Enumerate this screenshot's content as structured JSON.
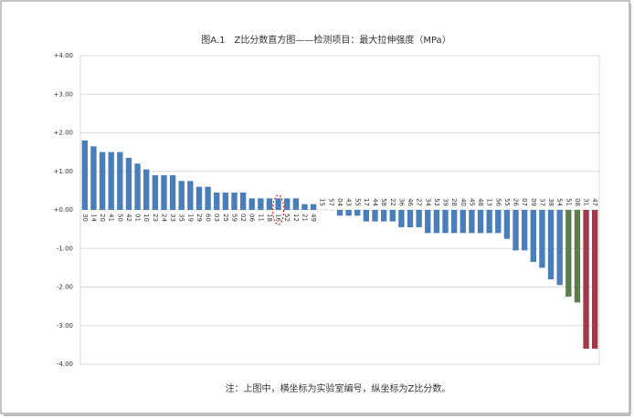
{
  "chart_data": {
    "type": "bar",
    "title": "图A.1　Z比分数直方图——检测项目：最大拉伸强度（MPa）",
    "note": "注：上图中，横坐标为实验室编号，纵坐标为Z比分数。",
    "categories": [
      "30",
      "14",
      "20",
      "41",
      "50",
      "42",
      "01",
      "10",
      "23",
      "24",
      "33",
      "35",
      "19",
      "29",
      "60",
      "03",
      "25",
      "59",
      "02",
      "06",
      "11",
      "18",
      "16",
      "52",
      "12",
      "21",
      "49",
      "15",
      "57",
      "04",
      "43",
      "55",
      "17",
      "44",
      "58",
      "22",
      "36",
      "46",
      "27",
      "34",
      "53",
      "39",
      "28",
      "40",
      "45",
      "48",
      "13",
      "56",
      "55",
      "26",
      "07",
      "09",
      "37",
      "38",
      "54",
      "51",
      "08",
      "31",
      "47"
    ],
    "values": [
      1.8,
      1.65,
      1.5,
      1.5,
      1.5,
      1.35,
      1.2,
      1.05,
      0.9,
      0.9,
      0.9,
      0.75,
      0.75,
      0.6,
      0.6,
      0.45,
      0.45,
      0.45,
      0.45,
      0.3,
      0.3,
      0.3,
      0.3,
      0.3,
      0.3,
      0.15,
      0.15,
      0,
      0,
      -0.15,
      -0.15,
      -0.15,
      -0.3,
      -0.3,
      -0.3,
      -0.3,
      -0.45,
      -0.45,
      -0.45,
      -0.6,
      -0.6,
      -0.6,
      -0.6,
      -0.6,
      -0.6,
      -0.6,
      -0.6,
      -0.6,
      -0.75,
      -1.05,
      -1.05,
      -1.35,
      -1.5,
      -1.8,
      -1.95,
      -2.25,
      -2.4,
      -3.6,
      -3.6
    ],
    "colors": [
      "#4a7ebb",
      "#4a7ebb",
      "#4a7ebb",
      "#4a7ebb",
      "#4a7ebb",
      "#4a7ebb",
      "#4a7ebb",
      "#4a7ebb",
      "#4a7ebb",
      "#4a7ebb",
      "#4a7ebb",
      "#4a7ebb",
      "#4a7ebb",
      "#4a7ebb",
      "#4a7ebb",
      "#4a7ebb",
      "#4a7ebb",
      "#4a7ebb",
      "#4a7ebb",
      "#4a7ebb",
      "#4a7ebb",
      "#4a7ebb",
      "#4a7ebb",
      "#4a7ebb",
      "#4a7ebb",
      "#4a7ebb",
      "#4a7ebb",
      "#4a7ebb",
      "#4a7ebb",
      "#4a7ebb",
      "#4a7ebb",
      "#4a7ebb",
      "#4a7ebb",
      "#4a7ebb",
      "#4a7ebb",
      "#4a7ebb",
      "#4a7ebb",
      "#4a7ebb",
      "#4a7ebb",
      "#4a7ebb",
      "#4a7ebb",
      "#4a7ebb",
      "#4a7ebb",
      "#4a7ebb",
      "#4a7ebb",
      "#4a7ebb",
      "#4a7ebb",
      "#4a7ebb",
      "#4a7ebb",
      "#4a7ebb",
      "#4a7ebb",
      "#4a7ebb",
      "#4a7ebb",
      "#4a7ebb",
      "#4a7ebb",
      "#5e7d4c",
      "#5e7d4c",
      "#a23a4b",
      "#a23a4b"
    ],
    "ylim": [
      -4,
      4
    ],
    "yticks": [
      {
        "value": 4,
        "label": "+4.00"
      },
      {
        "value": 3,
        "label": "+3.00"
      },
      {
        "value": 2,
        "label": "+2.00"
      },
      {
        "value": 1,
        "label": "+1.00"
      },
      {
        "value": 0,
        "label": "+0.00"
      },
      {
        "value": -1,
        "label": "-1.00"
      },
      {
        "value": -2,
        "label": "-2.00"
      },
      {
        "value": -3,
        "label": "-3.00"
      },
      {
        "value": -4,
        "label": "-4.00"
      }
    ],
    "grid": true
  }
}
